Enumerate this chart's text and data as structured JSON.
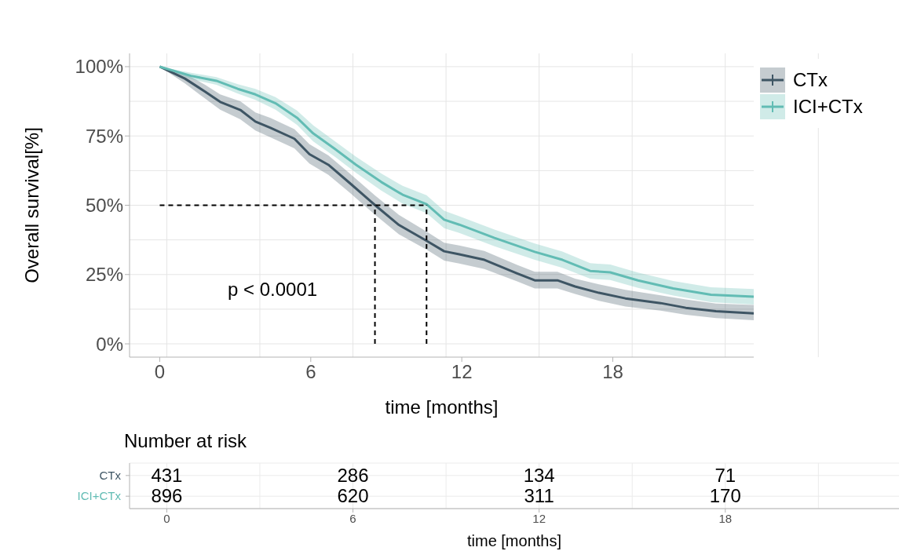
{
  "chart_data": [
    {
      "type": "line",
      "xlabel": "time [months]",
      "ylabel": "Overall survival[%]",
      "xlim": [
        -1.2,
        23.6
      ],
      "xticks": [
        0,
        6,
        12,
        18
      ],
      "ylim": [
        -4.8,
        104.8
      ],
      "yticks": [
        {
          "value": 0,
          "label": "0%"
        },
        {
          "value": 25,
          "label": "25%"
        },
        {
          "value": 50,
          "label": "50%"
        },
        {
          "value": 75,
          "label": "75%"
        },
        {
          "value": 100,
          "label": "100%"
        }
      ],
      "grid": true,
      "legend": "top right",
      "annotations": [
        "p < 0.0001"
      ],
      "ref_lines": [
        {
          "axis": "y",
          "value": 50,
          "line_style": "dashed",
          "color": "#000000"
        },
        {
          "axis": "x",
          "value": 8.55,
          "line_style": "dashed",
          "color": "#000000"
        },
        {
          "axis": "x",
          "value": 10.6,
          "line_style": "dashed",
          "color": "#000000"
        }
      ],
      "series": [
        {
          "name": "CTx",
          "color": "#3e5564",
          "x": [
            0,
            1.0,
            1.8,
            2.4,
            3.2,
            3.8,
            4.4,
            5.35,
            5.95,
            6.7,
            7.55,
            8.56,
            9.5,
            10.6,
            11.3,
            11.9,
            12.9,
            14.2,
            14.9,
            15.8,
            16.5,
            17.45,
            18.5,
            19.9,
            20.9,
            22.1,
            23.6
          ],
          "values": [
            100,
            95.7,
            91,
            87.3,
            84.4,
            80.2,
            77.9,
            74,
            68.4,
            64.6,
            58,
            50,
            42.9,
            37.2,
            33.4,
            32.3,
            30.3,
            25.4,
            22.9,
            22.9,
            20.7,
            18.4,
            16.4,
            14.7,
            13,
            11.8,
            11
          ],
          "lower": [
            100,
            94,
            88.5,
            84.5,
            81,
            77,
            74.5,
            70.5,
            65,
            61,
            54.5,
            46.5,
            39.5,
            34,
            30,
            29,
            27,
            22.5,
            20,
            20,
            18,
            15.5,
            13.5,
            12,
            10.5,
            9.3,
            8.5
          ],
          "upper": [
            100,
            97.5,
            93.5,
            90,
            87.5,
            83.5,
            81.5,
            77.5,
            72,
            68,
            61.5,
            53.5,
            46.5,
            40.5,
            36.5,
            35.5,
            33.5,
            28.5,
            26,
            26,
            23.5,
            21.5,
            19.5,
            17.5,
            16,
            14.5,
            14
          ]
        },
        {
          "name": "ICI+CTx",
          "color": "#62bcb4",
          "x": [
            0,
            1.24,
            2.25,
            3.1,
            3.8,
            4.6,
            5.45,
            6.1,
            6.96,
            7.8,
            8.8,
            9.65,
            10.6,
            11.3,
            11.9,
            13.3,
            14.9,
            16,
            17.1,
            17.9,
            19,
            20.4,
            21.9,
            23.6
          ],
          "values": [
            100,
            96.7,
            94.9,
            92,
            90,
            86.8,
            81.6,
            75.9,
            70.3,
            64.6,
            58.4,
            53.8,
            50.4,
            44.8,
            43,
            38.2,
            33.2,
            30.3,
            26.3,
            25.8,
            22.9,
            20,
            17.7,
            17
          ],
          "lower": [
            100,
            95.5,
            93.5,
            90.3,
            88,
            84.5,
            79,
            73,
            67.5,
            61.7,
            55.3,
            50.6,
            47.2,
            41.7,
            40,
            35.2,
            30.3,
            27.4,
            23.5,
            23,
            20.2,
            17.4,
            15,
            14.2
          ],
          "upper": [
            100,
            97.8,
            96.2,
            93.7,
            92,
            89,
            84.2,
            78.8,
            73.1,
            67.5,
            61.5,
            57,
            53.6,
            48,
            46,
            41.2,
            36.2,
            33.3,
            29.1,
            28.6,
            25.7,
            22.7,
            20.4,
            19.8
          ]
        }
      ]
    },
    {
      "type": "heatmap",
      "title": "Number at risk",
      "xlabel": "time [months]",
      "categories": [
        "0",
        "6",
        "12",
        "18"
      ],
      "y_categories": [
        "CTx",
        "ICI+CTx"
      ],
      "data_labels": true,
      "grid": true,
      "cells": [
        [
          431,
          286,
          134,
          71
        ],
        [
          896,
          620,
          311,
          170
        ]
      ]
    }
  ]
}
